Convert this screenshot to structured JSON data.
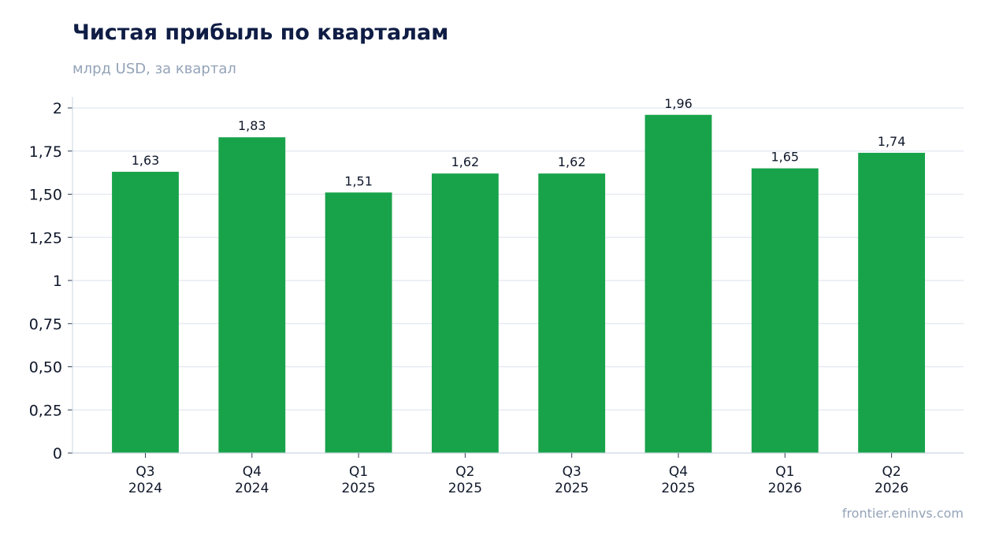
{
  "chart_data": {
    "type": "bar",
    "title": "Чистая прибыль по кварталам",
    "subtitle": "млрд USD, за квартал",
    "categories": [
      [
        "Q3",
        "2024"
      ],
      [
        "Q4",
        "2024"
      ],
      [
        "Q1",
        "2025"
      ],
      [
        "Q2",
        "2025"
      ],
      [
        "Q3",
        "2025"
      ],
      [
        "Q4",
        "2025"
      ],
      [
        "Q1",
        "2026"
      ],
      [
        "Q2",
        "2026"
      ]
    ],
    "values": [
      1.63,
      1.83,
      1.51,
      1.62,
      1.62,
      1.96,
      1.65,
      1.74
    ],
    "value_labels": [
      "1,63",
      "1,83",
      "1,51",
      "1,62",
      "1,62",
      "1,96",
      "1,65",
      "1,74"
    ],
    "ylim": [
      0,
      2
    ],
    "yticks": [
      0,
      0.25,
      0.5,
      0.75,
      1,
      1.25,
      1.5,
      1.75,
      2
    ],
    "ytick_labels": [
      "0",
      "0,25",
      "0,50",
      "0,75",
      "1",
      "1,25",
      "1,50",
      "1,75",
      "2"
    ],
    "grid": true,
    "bar_color": "#18a34a",
    "source": "frontier.eninvs.com"
  }
}
